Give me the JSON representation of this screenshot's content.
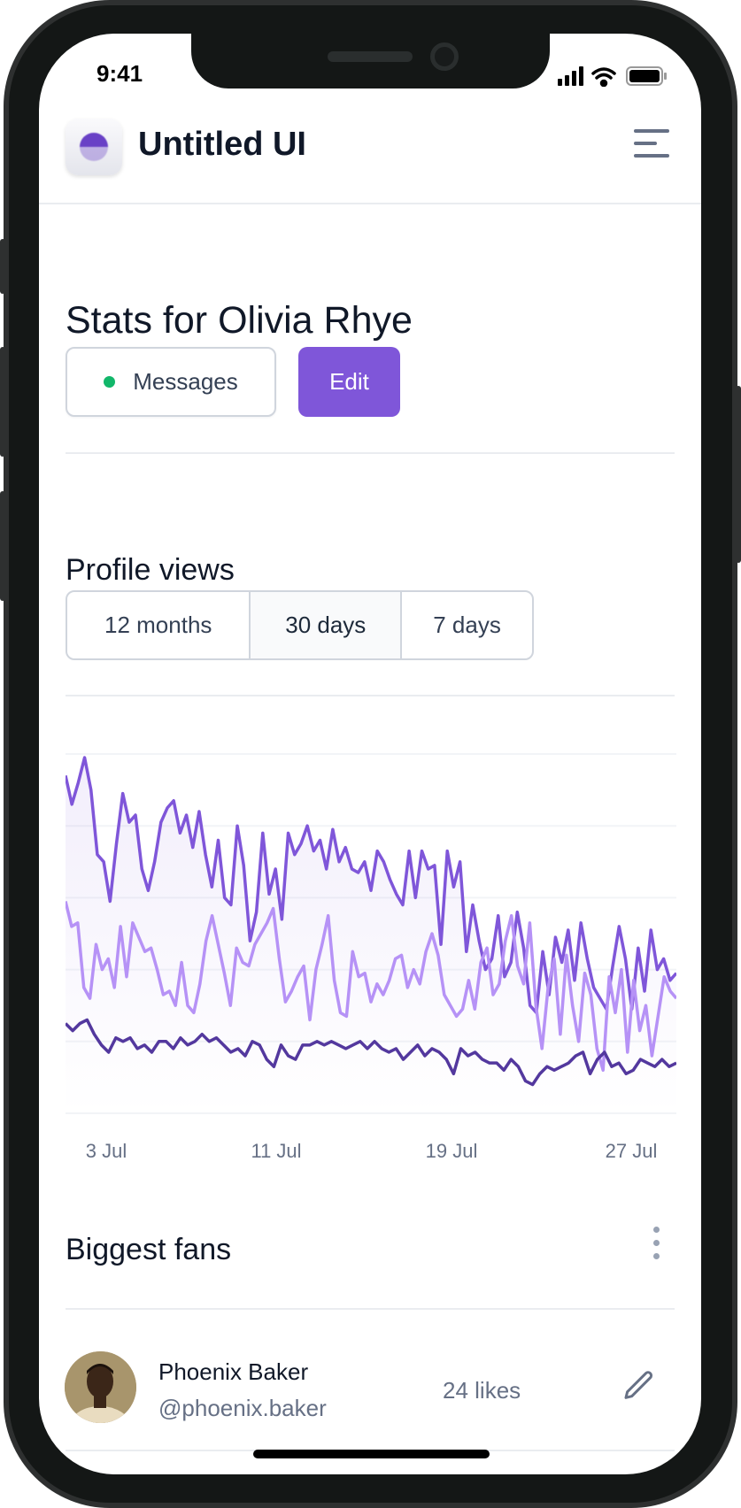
{
  "status_bar": {
    "time": "9:41",
    "icons": [
      "signal-icon",
      "wifi-icon",
      "battery-icon"
    ]
  },
  "header": {
    "brand": "Untitled UI",
    "logo": "untitled-ui-logo",
    "menu_icon": "hamburger-menu-icon"
  },
  "page": {
    "title": "Stats for Olivia Rhye",
    "messages_label": "Messages",
    "messages_status_color": "#12B76A",
    "edit_label": "Edit"
  },
  "profile_views": {
    "title": "Profile views",
    "ranges": [
      "12 months",
      "30 days",
      "7 days"
    ],
    "selected_range": "30 days"
  },
  "chart_data": {
    "type": "line",
    "x_ticks": [
      "3 Jul",
      "11 Jul",
      "19 Jul",
      "27 Jul"
    ],
    "ylim": [
      0,
      100
    ],
    "grid": true,
    "area_fill_under_top_series": true,
    "series": [
      {
        "color": "#7F56D9",
        "values": [
          94,
          86,
          92,
          99,
          90,
          72,
          70,
          59,
          75,
          89,
          81,
          83,
          68,
          62,
          70,
          81,
          85,
          87,
          78,
          83,
          74,
          84,
          72,
          63,
          76,
          60,
          58,
          80,
          69,
          48,
          56,
          78,
          61,
          68,
          54,
          78,
          72,
          75,
          80,
          73,
          76,
          68,
          79,
          70,
          74,
          68,
          67,
          70,
          62,
          73,
          70,
          65,
          61,
          58,
          73,
          60,
          73,
          68,
          69,
          47,
          73,
          63,
          70,
          45,
          58,
          48,
          40,
          43,
          55,
          38,
          42,
          56,
          46,
          30,
          28,
          45,
          33,
          49,
          42,
          51,
          37,
          53,
          43,
          35,
          32,
          29,
          41,
          52,
          43,
          29,
          46,
          34,
          51,
          40,
          43,
          37,
          39
        ]
      },
      {
        "color": "#B692F6",
        "values": [
          59,
          52,
          53,
          35,
          32,
          47,
          40,
          43,
          35,
          52,
          38,
          53,
          49,
          45,
          46,
          40,
          33,
          34,
          30,
          42,
          30,
          28,
          36,
          48,
          55,
          47,
          39,
          30,
          46,
          42,
          41,
          47,
          50,
          53,
          57,
          43,
          31,
          34,
          38,
          41,
          26,
          40,
          47,
          55,
          37,
          28,
          27,
          45,
          38,
          39,
          31,
          36,
          33,
          37,
          43,
          44,
          35,
          40,
          36,
          45,
          50,
          44,
          33,
          30,
          27,
          29,
          37,
          29,
          42,
          46,
          33,
          36,
          48,
          55,
          41,
          36,
          53,
          30,
          18,
          35,
          43,
          22,
          44,
          30,
          20,
          39,
          33,
          18,
          12,
          38,
          28,
          40,
          17,
          37,
          23,
          30,
          16,
          27,
          38,
          34,
          32
        ]
      },
      {
        "color": "#53389E",
        "values": [
          25,
          23,
          25,
          26,
          22,
          19,
          17,
          21,
          20,
          21,
          18,
          19,
          17,
          20,
          20,
          18,
          21,
          19,
          20,
          22,
          20,
          21,
          19,
          17,
          18,
          16,
          20,
          19,
          15,
          13,
          19,
          16,
          15,
          19,
          19,
          20,
          19,
          20,
          19,
          18,
          19,
          20,
          18,
          20,
          18,
          17,
          18,
          15,
          17,
          19,
          16,
          18,
          17,
          15,
          11,
          18,
          16,
          17,
          15,
          14,
          14,
          12,
          15,
          13,
          9,
          8,
          11,
          13,
          12,
          13,
          14,
          16,
          17,
          11,
          15,
          17,
          13,
          14,
          11,
          12,
          15,
          14,
          13,
          15,
          13,
          14
        ]
      }
    ]
  },
  "fans": {
    "title": "Biggest fans",
    "more_icon": "kebab-menu-icon",
    "items": [
      {
        "name": "Phoenix Baker",
        "handle": "@phoenix.baker",
        "likes": "24 likes",
        "action_icon": "pencil-icon"
      }
    ]
  }
}
